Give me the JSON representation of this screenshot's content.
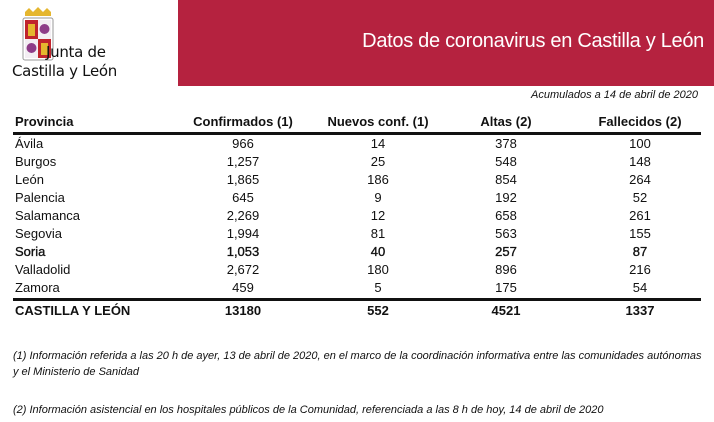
{
  "header": {
    "title": "Datos de coronavirus en Castilla y León",
    "logo_text_line1": "Junta de",
    "logo_text_line2": "Castilla y León",
    "brand_color": "#B5223F"
  },
  "subtitle": "Acumulados a 14 de abril de 2020",
  "table": {
    "columns": [
      "Provincia",
      "Confirmados (1)",
      "Nuevos conf. (1)",
      "Altas (2)",
      "Fallecidos (2)"
    ],
    "rows": [
      [
        "Ávila",
        "966",
        "14",
        "378",
        "100"
      ],
      [
        "Burgos",
        "1,257",
        "25",
        "548",
        "148"
      ],
      [
        "León",
        "1,865",
        "186",
        "854",
        "264"
      ],
      [
        "Palencia",
        "645",
        "9",
        "192",
        "52"
      ],
      [
        "Salamanca",
        "2,269",
        "12",
        "658",
        "261"
      ],
      [
        "Segovia",
        "1,994",
        "81",
        "563",
        "155"
      ],
      [
        "Soria",
        "1,053",
        "40",
        "257",
        "87"
      ],
      [
        "Valladolid",
        "2,672",
        "180",
        "896",
        "216"
      ],
      [
        "Zamora",
        "459",
        "5",
        "175",
        "54"
      ]
    ],
    "total": [
      "CASTILLA Y LEÓN",
      "13180",
      "552",
      "4521",
      "1337"
    ]
  },
  "notes": [
    "(1) Información referida a las 20 h de ayer, 13 de abril de 2020, en el marco de la coordinación informativa entre las comunidades autónomas y el Ministerio de Sanidad",
    "(2) Información asistencial en los hospitales públicos de la Comunidad, referenciada a las 8 h de hoy, 14 de abril de 2020"
  ]
}
